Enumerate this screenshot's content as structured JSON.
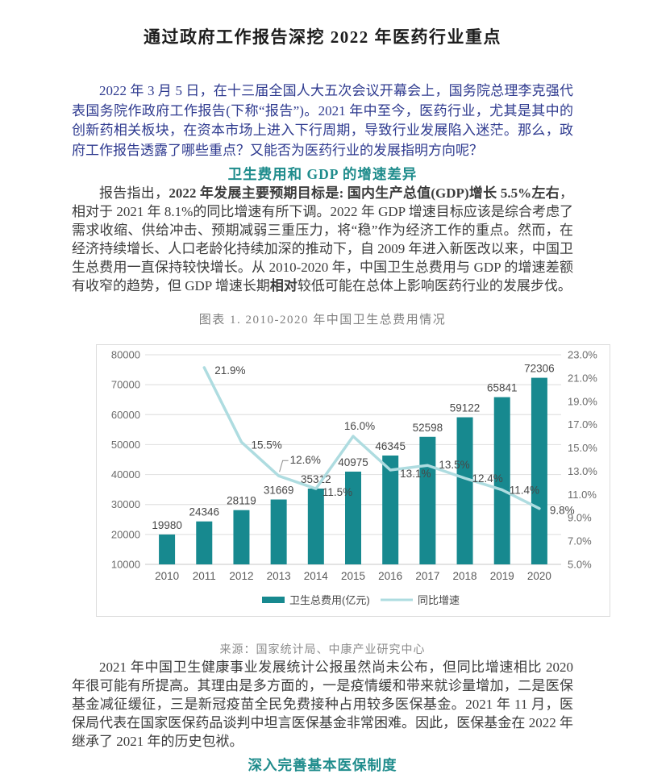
{
  "page": {
    "title": "通过政府工作报告深挖 2022 年医药行业重点",
    "intro_paragraph": "2022 年 3 月 5 日，在十三届全国人大五次会议开幕会上，国务院总理李克强代表国务院作政府工作报告(下称“报告”)。2021 年中至今，医药行业，尤其是其中的创新药相关板块，在资本市场上进入下行周期，导致行业发展陷入迷茫。那么，政府工作报告透露了哪些重点？又能否为医药行业的发展指明方向呢？",
    "section1_heading": "卫生费用和 GDP 的增速差异",
    "section1_paragraph_segments": [
      {
        "t": "报告指出，",
        "b": false
      },
      {
        "t": "2022 年发展主要预期目标是: 国内生产总值(GDP)增长 5.5%左右",
        "b": true
      },
      {
        "t": "，相对于 2021 年 8.1%的同比增速有所下调。2022 年 GDP 增速目标应该是综合考虑了需求收缩、供给冲击、预期减弱三重压力，将“稳”作为经济工作的重点。然而，在经济持续增长、人口老龄化持续加深的推动下，自 2009 年进入新医改以来，中国卫生总费用一直保持较快增长。从 2010-2020 年，中国卫生总费用与 GDP 的增速差额有收窄的趋势，但 GDP 增速长期",
        "b": false
      },
      {
        "t": "相对",
        "b": true
      },
      {
        "t": "较低可能在总体上影响医药行业的发展步伐。",
        "b": false
      }
    ],
    "figure_source": "来源：国家统计局、中康产业研究中心",
    "analysis_paragraph": "2021 年中国卫生健康事业发展统计公报虽然尚未公布，但同比增速相比 2020 年很可能有所提高。其理由是多方面的，一是疫情缓和带来就诊量增加，二是医保基金减征缓征，三是新冠疫苗全民免费接种占用较多医保基金。2021 年 11 月，医保局代表在国家医保药品谈判中坦言医保基金非常困难。因此，医保基金在 2022 年继承了 2021 年的历史包袱。",
    "section2_heading": "深入完善基本医保制度"
  },
  "colors": {
    "intro_text_blue": "#2e3a8f",
    "heading_teal": "#1f8c8c",
    "body_text": "#3c3c3c",
    "caption_gray": "#808080",
    "bar_teal": "#17898F",
    "line_light_teal": "#AEDCE0",
    "grid_gray": "#e3e3e3",
    "axis_text_gray": "#6b6b6b"
  },
  "chart_data": {
    "type": "bar",
    "subtype": "bar+line combo, dual axis",
    "title": "图表 1. 2010-2020 年中国卫生总费用情况",
    "categories": [
      "2010",
      "2011",
      "2012",
      "2013",
      "2014",
      "2015",
      "2016",
      "2017",
      "2018",
      "2019",
      "2020"
    ],
    "grid": true,
    "legend_position": "bottom",
    "left_axis": {
      "min": 10000,
      "max": 80000,
      "step": 10000,
      "ticks": [
        "10000",
        "20000",
        "30000",
        "40000",
        "50000",
        "60000",
        "70000",
        "80000"
      ]
    },
    "right_axis": {
      "min": 5,
      "max": 23,
      "step": 2,
      "ticks": [
        "5.0%",
        "7.0%",
        "9.0%",
        "11.0%",
        "13.0%",
        "15.0%",
        "17.0%",
        "19.0%",
        "21.0%",
        "23.0%"
      ]
    },
    "series": [
      {
        "name": "卫生总费用(亿元)",
        "type": "bar",
        "axis": "left",
        "color": "#17898F",
        "values": [
          19980,
          24346,
          28119,
          31669,
          35312,
          40975,
          46345,
          52598,
          59122,
          65841,
          72306
        ],
        "labels": [
          "19980",
          "24346",
          "28119",
          "31669",
          "35312",
          "40975",
          "46345",
          "52598",
          "59122",
          "65841",
          "72306"
        ]
      },
      {
        "name": "同比增速",
        "type": "line",
        "axis": "right",
        "color": "#AEDCE0",
        "x_start_index": 1,
        "values": [
          21.9,
          15.5,
          12.6,
          11.5,
          16.0,
          13.1,
          13.5,
          12.4,
          11.4,
          9.8
        ],
        "point_labels": [
          {
            "text": "21.9%",
            "dx": 13,
            "dy": 8,
            "anchor": "start"
          },
          {
            "text": "15.5%",
            "dx": 12,
            "dy": 8,
            "anchor": "start"
          },
          {
            "text": "12.6%",
            "dx": 14,
            "dy": -15,
            "anchor": "start",
            "leader": true
          },
          {
            "text": "11.5%",
            "dx": 8,
            "dy": 9,
            "anchor": "start"
          },
          {
            "text": "16.0%",
            "dx": 8,
            "dy": -8,
            "anchor": "middle"
          },
          {
            "text": "13.1%",
            "dx": 12,
            "dy": 9,
            "anchor": "start"
          },
          {
            "text": "13.5%",
            "dx": 14,
            "dy": 4,
            "anchor": "start"
          },
          {
            "text": "12.4%",
            "dx": 9,
            "dy": 5,
            "anchor": "start"
          },
          {
            "text": "11.4%",
            "dx": 9,
            "dy": 5,
            "anchor": "start"
          },
          {
            "text": "9.8%",
            "dx": 13,
            "dy": 7,
            "anchor": "start"
          }
        ]
      }
    ]
  }
}
